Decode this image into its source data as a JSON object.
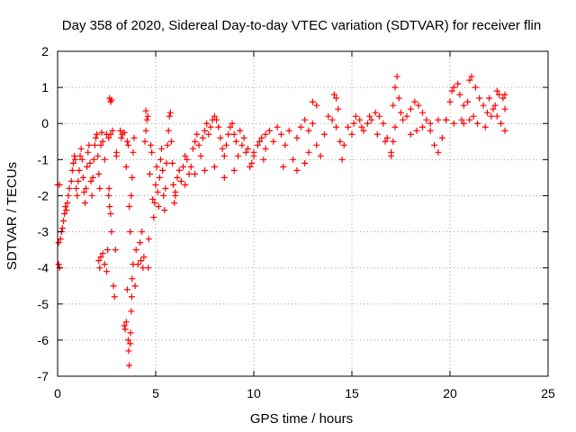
{
  "chart_data": {
    "type": "scatter",
    "title": "Day 358 of 2020, Sidereal Day-to-day VTEC variation (SDTVAR) for receiver flin",
    "xlabel": "GPS time / hours",
    "ylabel": "SDTVAR / TECUs",
    "xlim": [
      0,
      25
    ],
    "ylim": [
      -7,
      2
    ],
    "xticks": [
      0,
      5,
      10,
      15,
      20,
      25
    ],
    "yticks": [
      -7,
      -6,
      -5,
      -4,
      -3,
      -2,
      -1,
      0,
      1,
      2
    ],
    "grid": true,
    "marker": "+",
    "color": "#ff0000",
    "series": [
      {
        "name": "SDTVAR",
        "points": [
          [
            0.0,
            -1.7
          ],
          [
            0.05,
            -3.3
          ],
          [
            0.05,
            -3.9
          ],
          [
            0.1,
            -4.0
          ],
          [
            0.1,
            -1.7
          ],
          [
            0.15,
            -3.2
          ],
          [
            0.2,
            -3.0
          ],
          [
            0.25,
            -2.9
          ],
          [
            0.3,
            -2.7
          ],
          [
            0.35,
            -2.5
          ],
          [
            0.4,
            -2.3
          ],
          [
            0.45,
            -2.4
          ],
          [
            0.5,
            -2.2
          ],
          [
            0.55,
            -2.0
          ],
          [
            0.6,
            -1.8
          ],
          [
            0.7,
            -1.6
          ],
          [
            0.75,
            -1.3
          ],
          [
            0.8,
            -1.1
          ],
          [
            0.85,
            -0.9
          ],
          [
            0.9,
            -1.0
          ],
          [
            0.95,
            -1.8
          ],
          [
            1.0,
            -2.0
          ],
          [
            1.05,
            -1.6
          ],
          [
            1.1,
            -1.3
          ],
          [
            1.15,
            -0.9
          ],
          [
            1.2,
            -0.7
          ],
          [
            1.25,
            -1.0
          ],
          [
            1.3,
            -1.5
          ],
          [
            1.35,
            -1.9
          ],
          [
            1.4,
            -2.2
          ],
          [
            1.45,
            -1.8
          ],
          [
            1.5,
            -1.2
          ],
          [
            1.55,
            -0.8
          ],
          [
            1.6,
            -0.6
          ],
          [
            1.65,
            -1.1
          ],
          [
            1.7,
            -1.6
          ],
          [
            1.75,
            -2.0
          ],
          [
            1.8,
            -1.5
          ],
          [
            1.85,
            -1.0
          ],
          [
            1.9,
            -0.6
          ],
          [
            1.95,
            -0.4
          ],
          [
            2.0,
            -0.3
          ],
          [
            2.05,
            -0.9
          ],
          [
            2.1,
            -1.4
          ],
          [
            2.15,
            -1.8
          ],
          [
            2.2,
            -0.6
          ],
          [
            2.25,
            -0.25
          ],
          [
            2.3,
            -0.5
          ],
          [
            2.4,
            -1.0
          ],
          [
            2.5,
            -0.3
          ],
          [
            2.6,
            -0.4
          ],
          [
            2.7,
            -0.3
          ],
          [
            2.8,
            -0.2
          ],
          [
            2.1,
            -3.8
          ],
          [
            2.15,
            -4.0
          ],
          [
            2.2,
            -3.7
          ],
          [
            2.3,
            -3.6
          ],
          [
            2.4,
            -3.9
          ],
          [
            2.5,
            -4.1
          ],
          [
            2.55,
            -3.5
          ],
          [
            2.6,
            -2.0
          ],
          [
            2.62,
            -1.8
          ],
          [
            2.65,
            -2.3
          ],
          [
            2.7,
            -2.5
          ],
          [
            2.75,
            -3.0
          ],
          [
            2.85,
            -4.5
          ],
          [
            2.9,
            -4.8
          ],
          [
            2.95,
            -3.5
          ],
          [
            3.0,
            -0.8
          ],
          [
            3.0,
            -0.9
          ],
          [
            2.65,
            0.7
          ],
          [
            2.7,
            0.6
          ],
          [
            2.75,
            0.65
          ],
          [
            3.3,
            -0.3
          ],
          [
            3.2,
            -0.2
          ],
          [
            3.25,
            -0.4
          ],
          [
            3.4,
            -0.25
          ],
          [
            3.4,
            -5.6
          ],
          [
            3.45,
            -5.7
          ],
          [
            3.5,
            -5.5
          ],
          [
            3.55,
            -4.6
          ],
          [
            3.6,
            -6.0
          ],
          [
            3.62,
            -6.3
          ],
          [
            3.65,
            -6.7
          ],
          [
            3.7,
            -6.1
          ],
          [
            3.72,
            -5.8
          ],
          [
            3.75,
            -5.2
          ],
          [
            3.78,
            -4.8
          ],
          [
            3.8,
            -4.3
          ],
          [
            3.85,
            -3.9
          ],
          [
            3.5,
            -1.2
          ],
          [
            3.55,
            -0.5
          ],
          [
            3.6,
            -0.6
          ],
          [
            3.65,
            -2.3
          ],
          [
            3.7,
            -3.0
          ],
          [
            3.75,
            -2.0
          ],
          [
            3.8,
            -1.5
          ],
          [
            3.85,
            -0.8
          ],
          [
            3.9,
            -0.4
          ],
          [
            3.95,
            -4.5
          ],
          [
            4.0,
            -3.5
          ],
          [
            4.1,
            -3.9
          ],
          [
            4.2,
            -3.3
          ],
          [
            4.25,
            -3.8
          ],
          [
            4.3,
            -3.0
          ],
          [
            4.35,
            -4.0
          ],
          [
            4.4,
            -3.7
          ],
          [
            4.45,
            -0.5
          ],
          [
            4.5,
            -0.2
          ],
          [
            4.5,
            0.35
          ],
          [
            4.55,
            0.1
          ],
          [
            4.6,
            0.2
          ],
          [
            4.62,
            -4.0
          ],
          [
            4.65,
            -3.2
          ],
          [
            4.7,
            -1.4
          ],
          [
            4.75,
            -0.6
          ],
          [
            4.8,
            -0.8
          ],
          [
            4.85,
            -2.1
          ],
          [
            4.9,
            -2.6
          ],
          [
            4.95,
            -2.2
          ],
          [
            5.0,
            -1.7
          ],
          [
            5.05,
            -1.2
          ],
          [
            5.1,
            -1.9
          ],
          [
            5.15,
            -2.3
          ],
          [
            5.2,
            -1.5
          ],
          [
            5.25,
            -1.0
          ],
          [
            5.3,
            -0.7
          ],
          [
            5.35,
            -1.3
          ],
          [
            5.4,
            -2.0
          ],
          [
            5.45,
            -2.4
          ],
          [
            5.5,
            -1.8
          ],
          [
            5.55,
            -1.1
          ],
          [
            5.6,
            -0.6
          ],
          [
            5.65,
            -0.2
          ],
          [
            5.7,
            0.2
          ],
          [
            5.75,
            0.3
          ],
          [
            5.8,
            -0.5
          ],
          [
            5.85,
            -1.1
          ],
          [
            5.9,
            -1.7
          ],
          [
            5.95,
            -2.2
          ],
          [
            6.0,
            -1.9
          ],
          [
            6.1,
            -1.5
          ],
          [
            6.2,
            -1.3
          ],
          [
            6.3,
            -1.6
          ],
          [
            6.4,
            -1.2
          ],
          [
            6.5,
            -0.9
          ],
          [
            6.6,
            -1.0
          ],
          [
            6.7,
            -1.4
          ],
          [
            6.8,
            -1.2
          ],
          [
            6.9,
            -0.7
          ],
          [
            7.0,
            -0.5
          ],
          [
            7.1,
            -0.3
          ],
          [
            7.2,
            -0.6
          ],
          [
            7.3,
            -0.9
          ],
          [
            7.4,
            -0.4
          ],
          [
            7.5,
            -0.2
          ],
          [
            7.6,
            0.0
          ],
          [
            7.7,
            -0.3
          ],
          [
            7.8,
            -0.1
          ],
          [
            7.9,
            0.1
          ],
          [
            8.0,
            0.2
          ],
          [
            8.1,
            0.1
          ],
          [
            8.2,
            -0.1
          ],
          [
            8.3,
            -0.4
          ],
          [
            8.4,
            -0.7
          ],
          [
            8.5,
            -0.9
          ],
          [
            8.6,
            -0.6
          ],
          [
            8.7,
            -0.3
          ],
          [
            8.8,
            -0.1
          ],
          [
            8.9,
            0.0
          ],
          [
            6.0,
            -2.0
          ],
          [
            6.5,
            -1.7
          ],
          [
            7.0,
            -1.4
          ],
          [
            7.5,
            -1.3
          ],
          [
            8.0,
            -1.2
          ],
          [
            8.5,
            -1.5
          ],
          [
            9.0,
            -1.3
          ],
          [
            9.2,
            -0.9
          ],
          [
            9.4,
            -0.6
          ],
          [
            9.6,
            -0.8
          ],
          [
            9.0,
            -0.3
          ],
          [
            9.1,
            -0.5
          ],
          [
            9.3,
            -0.2
          ],
          [
            9.5,
            -0.4
          ],
          [
            9.7,
            -0.7
          ],
          [
            9.9,
            -1.1
          ],
          [
            10.0,
            -0.9
          ],
          [
            10.2,
            -0.6
          ],
          [
            10.4,
            -0.4
          ],
          [
            10.6,
            -0.3
          ],
          [
            10.0,
            -0.8
          ],
          [
            10.3,
            -0.5
          ],
          [
            10.6,
            -0.7
          ],
          [
            10.8,
            -0.2
          ],
          [
            11.0,
            -0.5
          ],
          [
            11.2,
            -0.1
          ],
          [
            11.4,
            -0.3
          ],
          [
            11.6,
            -0.6
          ],
          [
            11.8,
            -0.2
          ],
          [
            12.0,
            -1.0
          ],
          [
            12.2,
            -0.4
          ],
          [
            12.4,
            -0.1
          ],
          [
            12.6,
            0.1
          ],
          [
            12.8,
            -0.2
          ],
          [
            13.0,
            0.0
          ],
          [
            13.2,
            -0.6
          ],
          [
            13.4,
            -0.9
          ],
          [
            13.6,
            -0.3
          ],
          [
            13.8,
            0.2
          ],
          [
            14.0,
            0.1
          ],
          [
            14.2,
            -0.1
          ],
          [
            14.4,
            -0.5
          ],
          [
            14.5,
            -1.0
          ],
          [
            14.6,
            -0.6
          ],
          [
            14.8,
            -0.1
          ],
          [
            13.0,
            0.6
          ],
          [
            13.2,
            0.5
          ],
          [
            14.1,
            0.8
          ],
          [
            14.2,
            0.7
          ],
          [
            14.3,
            0.4
          ],
          [
            12.2,
            -1.3
          ],
          [
            12.6,
            -1.1
          ],
          [
            12.8,
            -0.8
          ],
          [
            11.5,
            -1.2
          ],
          [
            10.5,
            -1.0
          ],
          [
            9.8,
            -1.2
          ],
          [
            15.0,
            -0.3
          ],
          [
            15.1,
            0.0
          ],
          [
            15.2,
            0.2
          ],
          [
            15.4,
            0.1
          ],
          [
            15.6,
            -0.2
          ],
          [
            15.8,
            0.0
          ],
          [
            16.0,
            0.1
          ],
          [
            16.2,
            0.3
          ],
          [
            16.4,
            0.2
          ],
          [
            16.6,
            0.0
          ],
          [
            16.8,
            -0.4
          ],
          [
            17.0,
            -0.8
          ],
          [
            17.1,
            -0.5
          ],
          [
            17.2,
            -0.1
          ],
          [
            15.5,
            -0.1
          ],
          [
            15.9,
            0.2
          ],
          [
            16.3,
            -0.3
          ],
          [
            16.7,
            -0.5
          ],
          [
            17.0,
            -0.9
          ],
          [
            17.1,
            0.5
          ],
          [
            17.2,
            1.0
          ],
          [
            17.3,
            1.3
          ],
          [
            17.4,
            0.7
          ],
          [
            17.5,
            0.3
          ],
          [
            17.6,
            0.1
          ],
          [
            17.8,
            0.2
          ],
          [
            18.0,
            0.4
          ],
          [
            18.2,
            0.6
          ],
          [
            18.4,
            0.5
          ],
          [
            18.6,
            0.3
          ],
          [
            18.8,
            0.1
          ],
          [
            19.0,
            -0.2
          ],
          [
            19.2,
            -0.6
          ],
          [
            19.4,
            -0.8
          ],
          [
            19.6,
            -0.4
          ],
          [
            19.8,
            0.1
          ],
          [
            18.0,
            -0.3
          ],
          [
            18.3,
            -0.2
          ],
          [
            18.6,
            -0.1
          ],
          [
            19.0,
            0.0
          ],
          [
            19.4,
            0.1
          ],
          [
            19.8,
            0.1
          ],
          [
            20.2,
            0.0
          ],
          [
            20.6,
            0.1
          ],
          [
            21.0,
            0.1
          ],
          [
            21.4,
            0.0
          ],
          [
            21.8,
            -0.1
          ],
          [
            20.0,
            0.6
          ],
          [
            20.1,
            0.9
          ],
          [
            20.2,
            1.0
          ],
          [
            20.4,
            1.1
          ],
          [
            20.5,
            0.8
          ],
          [
            20.7,
            0.5
          ],
          [
            20.9,
            0.6
          ],
          [
            21.0,
            1.2
          ],
          [
            21.1,
            1.3
          ],
          [
            21.3,
            1.0
          ],
          [
            21.5,
            0.7
          ],
          [
            21.7,
            0.5
          ],
          [
            21.9,
            0.3
          ],
          [
            22.1,
            0.2
          ],
          [
            22.3,
            0.5
          ],
          [
            22.5,
            0.8
          ],
          [
            22.7,
            0.7
          ],
          [
            22.0,
            0.7
          ],
          [
            22.2,
            0.4
          ],
          [
            22.4,
            0.2
          ],
          [
            22.6,
            0.0
          ],
          [
            22.8,
            -0.2
          ],
          [
            22.8,
            0.8
          ],
          [
            22.8,
            0.4
          ],
          [
            20.7,
            0.0
          ],
          [
            21.2,
            0.2
          ],
          [
            22.4,
            0.9
          ]
        ]
      }
    ]
  }
}
